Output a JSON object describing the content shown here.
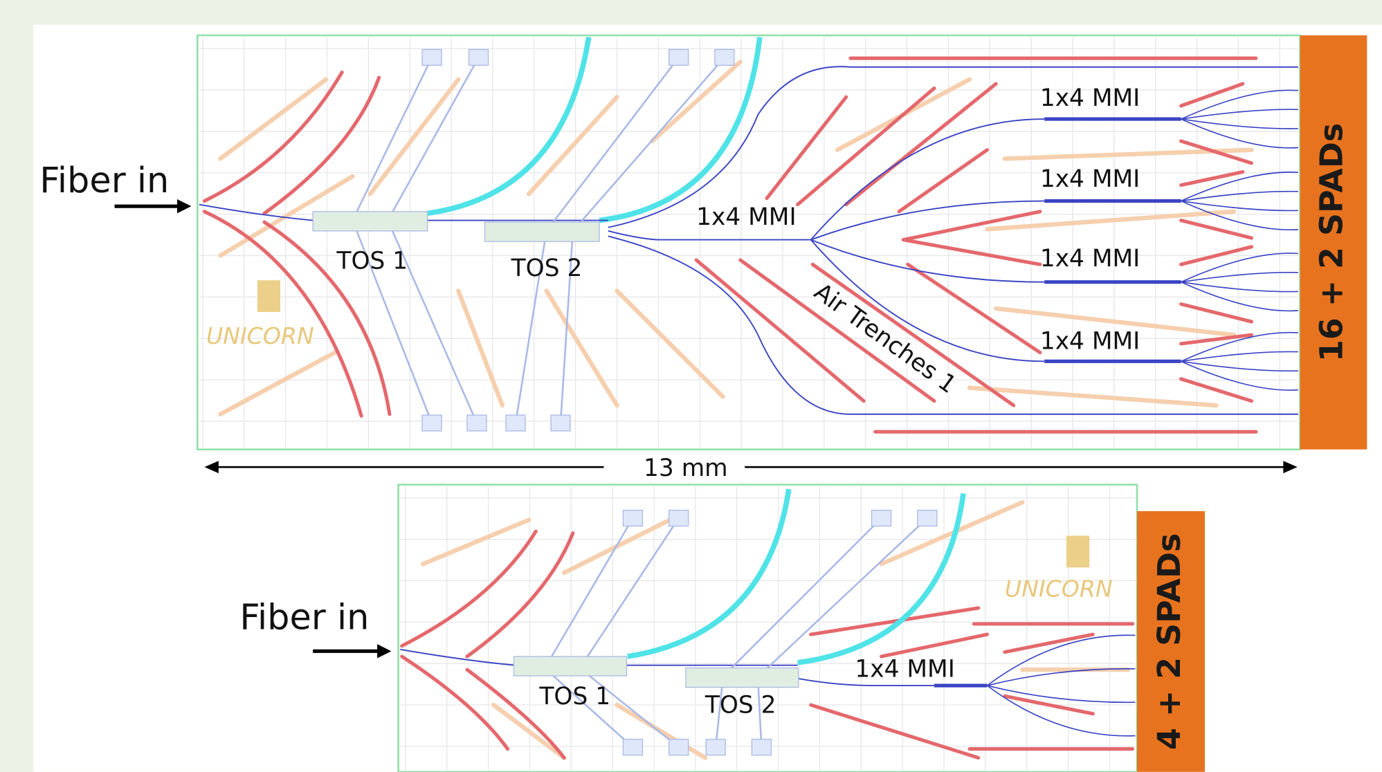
{
  "chips": [
    {
      "input_label": "Fiber in",
      "switches": [
        "TOS 1",
        "TOS 2"
      ],
      "splitters": [
        "1x4 MMI",
        "1x4 MMI",
        "1x4 MMI",
        "1x4 MMI",
        "1x4 MMI"
      ],
      "trench_label": "Air Trenches 1",
      "logo": "UNICORN",
      "detectors": "16 + 2 SPADs"
    },
    {
      "input_label": "Fiber in",
      "switches": [
        "TOS 1",
        "TOS 2"
      ],
      "splitters": [
        "1x4 MMI"
      ],
      "logo": "UNICORN",
      "detectors": "4 + 2 SPADs"
    }
  ],
  "dimension": "13 mm"
}
